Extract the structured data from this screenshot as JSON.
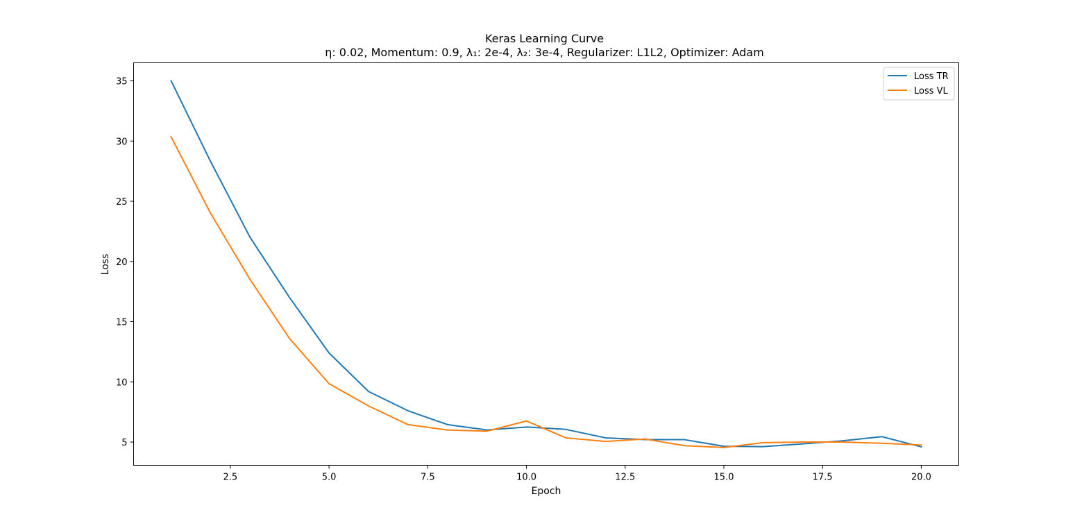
{
  "chart_data": {
    "type": "line",
    "title": "Keras Learning Curve",
    "subtitle": "η: 0.02, Momentum: 0.9, λ₁: 2e-4, λ₂: 3e-4, Regularizer: L1L2, Optimizer: Adam",
    "xlabel": "Epoch",
    "ylabel": "Loss",
    "xlim": [
      0.05,
      20.95
    ],
    "ylim": [
      3.07,
      36.5
    ],
    "xticks": [
      2.5,
      5.0,
      7.5,
      10.0,
      12.5,
      15.0,
      17.5,
      20.0
    ],
    "xtick_labels": [
      "2.5",
      "5.0",
      "7.5",
      "10.0",
      "12.5",
      "15.0",
      "17.5",
      "20.0"
    ],
    "yticks": [
      5,
      10,
      15,
      20,
      25,
      30,
      35
    ],
    "ytick_labels": [
      "5",
      "10",
      "15",
      "20",
      "25",
      "30",
      "35"
    ],
    "grid": false,
    "legend_position": "top-right",
    "x": [
      1,
      2,
      3,
      4,
      5,
      6,
      7,
      8,
      9,
      10,
      11,
      12,
      13,
      14,
      15,
      16,
      17,
      18,
      19,
      20
    ],
    "series": [
      {
        "name": "Loss TR",
        "color": "#1f77b4",
        "values": [
          35.0,
          28.3,
          22.0,
          17.0,
          12.4,
          9.2,
          7.6,
          6.45,
          6.0,
          6.25,
          6.05,
          5.35,
          5.2,
          5.2,
          4.65,
          4.62,
          4.85,
          5.1,
          5.45,
          4.6
        ]
      },
      {
        "name": "Loss VL",
        "color": "#ff7f0e",
        "values": [
          30.35,
          24.0,
          18.5,
          13.6,
          9.85,
          8.0,
          6.45,
          6.0,
          5.9,
          6.75,
          5.35,
          5.05,
          5.25,
          4.7,
          4.55,
          4.95,
          5.0,
          5.0,
          4.9,
          4.75
        ]
      }
    ]
  }
}
